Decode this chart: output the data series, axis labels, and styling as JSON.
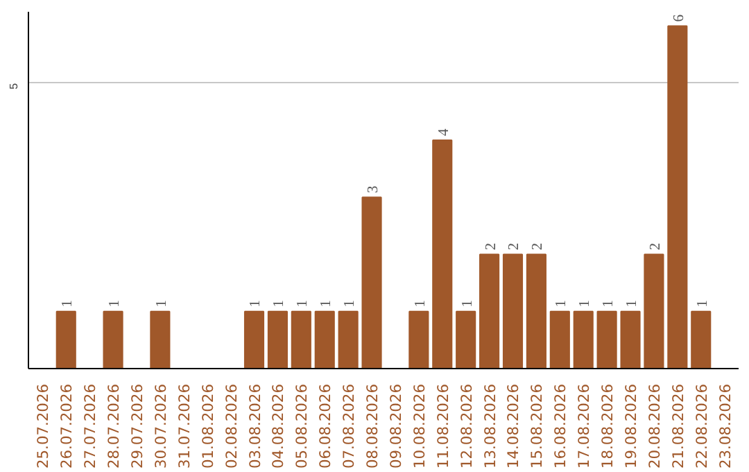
{
  "chart_data": {
    "type": "bar",
    "categories": [
      "25.07.2026",
      "26.07.2026",
      "27.07.2026",
      "28.07.2026",
      "29.07.2026",
      "30.07.2026",
      "31.07.2026",
      "01.08.2026",
      "02.08.2026",
      "03.08.2026",
      "04.08.2026",
      "05.08.2026",
      "06.08.2026",
      "07.08.2026",
      "08.08.2026",
      "09.08.2026",
      "10.08.2026",
      "11.08.2026",
      "12.08.2026",
      "13.08.2026",
      "14.08.2026",
      "15.08.2026",
      "16.08.2026",
      "17.08.2026",
      "18.08.2026",
      "19.08.2026",
      "20.08.2026",
      "21.08.2026",
      "22.08.2026",
      "23.08.2026"
    ],
    "values": [
      0,
      1,
      0,
      1,
      0,
      1,
      0,
      0,
      0,
      1,
      1,
      1,
      1,
      1,
      3,
      0,
      1,
      4,
      1,
      2,
      2,
      2,
      1,
      1,
      1,
      1,
      2,
      6,
      1,
      0
    ],
    "value_labels": [
      null,
      "1",
      null,
      "1",
      null,
      "1",
      null,
      null,
      null,
      "1",
      "1",
      "1",
      "1",
      "1",
      "3",
      null,
      "1",
      "4",
      "1",
      "2",
      "2",
      "2",
      "1",
      "1",
      "1",
      "1",
      "2",
      "6",
      "1",
      null
    ],
    "color": "#a0582a",
    "ylim": [
      0,
      6.25
    ],
    "yticks": [
      5
    ],
    "grid": "y"
  }
}
